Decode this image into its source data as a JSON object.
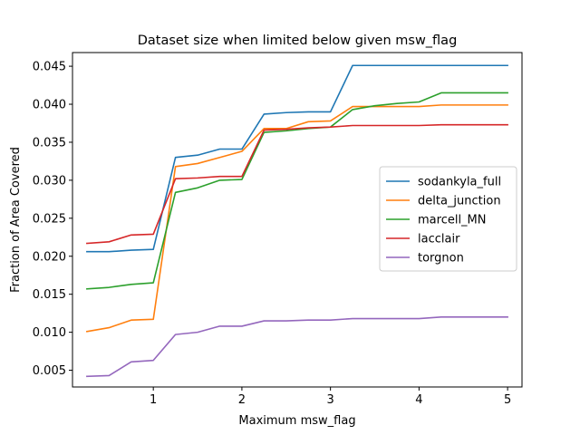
{
  "chart_data": {
    "type": "line",
    "title": "Dataset size when limited below given msw_flag",
    "xlabel": "Maximum msw_flag",
    "ylabel": "Fraction of Area Covered",
    "xlim": [
      0.0875,
      5.1625
    ],
    "ylim": [
      0.0028,
      0.0468
    ],
    "xticks": [
      1,
      2,
      3,
      4,
      5
    ],
    "xtick_labels": [
      "1",
      "2",
      "3",
      "4",
      "5"
    ],
    "yticks": [
      0.005,
      0.01,
      0.015,
      0.02,
      0.025,
      0.03,
      0.035,
      0.04,
      0.045
    ],
    "ytick_labels": [
      "0.005",
      "0.010",
      "0.015",
      "0.020",
      "0.025",
      "0.030",
      "0.035",
      "0.040",
      "0.045"
    ],
    "grid": false,
    "legend_position": "center-right",
    "x": [
      0.25,
      0.5,
      0.75,
      1.0,
      1.25,
      1.5,
      1.75,
      2.0,
      2.25,
      2.5,
      2.75,
      3.0,
      3.25,
      3.5,
      3.75,
      4.0,
      4.25,
      4.5,
      4.75,
      5.0
    ],
    "series": [
      {
        "name": "sodankyla_full",
        "color": "#1f77b4",
        "values": [
          0.0206,
          0.0206,
          0.0208,
          0.0209,
          0.033,
          0.0333,
          0.0341,
          0.0341,
          0.0387,
          0.0389,
          0.039,
          0.039,
          0.0451,
          0.0451,
          0.0451,
          0.0451,
          0.0451,
          0.0451,
          0.0451,
          0.0451
        ]
      },
      {
        "name": "delta_junction",
        "color": "#ff7f0e",
        "values": [
          0.0101,
          0.0106,
          0.0116,
          0.0117,
          0.0318,
          0.0322,
          0.033,
          0.0338,
          0.0368,
          0.0368,
          0.0377,
          0.0378,
          0.0397,
          0.0397,
          0.0397,
          0.0397,
          0.0399,
          0.0399,
          0.0399,
          0.0399
        ]
      },
      {
        "name": "marcell_MN",
        "color": "#2ca02c",
        "values": [
          0.0157,
          0.0159,
          0.0163,
          0.0165,
          0.0284,
          0.029,
          0.03,
          0.0301,
          0.0363,
          0.0365,
          0.0368,
          0.037,
          0.0393,
          0.0398,
          0.0401,
          0.0403,
          0.0415,
          0.0415,
          0.0415,
          0.0415
        ]
      },
      {
        "name": "lacclair",
        "color": "#d62728",
        "values": [
          0.0217,
          0.0219,
          0.0228,
          0.0229,
          0.0302,
          0.0303,
          0.0305,
          0.0305,
          0.0366,
          0.0367,
          0.0369,
          0.037,
          0.0372,
          0.0372,
          0.0372,
          0.0372,
          0.0373,
          0.0373,
          0.0373,
          0.0373
        ]
      },
      {
        "name": "torgnon",
        "color": "#9467bd",
        "values": [
          0.0042,
          0.0043,
          0.0061,
          0.0063,
          0.0097,
          0.01,
          0.0108,
          0.0108,
          0.0115,
          0.0115,
          0.0116,
          0.0116,
          0.0118,
          0.0118,
          0.0118,
          0.0118,
          0.012,
          0.012,
          0.012,
          0.012
        ]
      }
    ]
  }
}
